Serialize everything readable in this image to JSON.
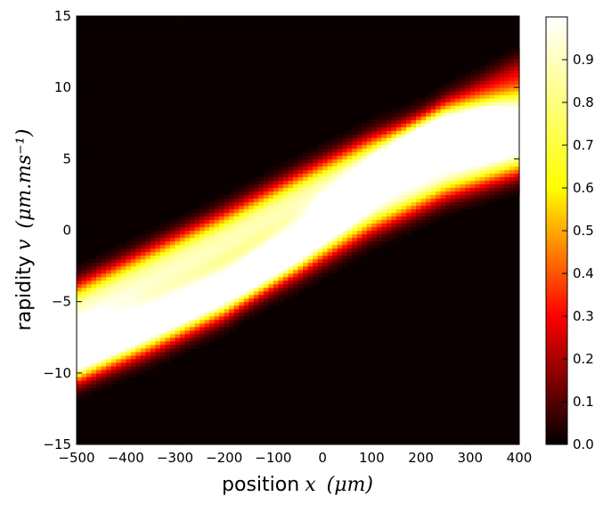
{
  "chart_data": {
    "type": "heatmap",
    "title": "",
    "xlabel": "position",
    "xlabel_var": "x",
    "xlabel_unit": "(μm)",
    "ylabel": "rapidity",
    "ylabel_var": "v",
    "ylabel_unit": "(μm.ms⁻¹)",
    "xlim": [
      -500,
      400
    ],
    "ylim": [
      -15,
      15
    ],
    "x_ticks": [
      -500,
      -400,
      -300,
      -200,
      -100,
      0,
      100,
      200,
      300,
      400
    ],
    "x_tick_labels": [
      "−500",
      "−400",
      "−300",
      "−200",
      "−100",
      "0",
      "100",
      "200",
      "300",
      "400"
    ],
    "y_ticks": [
      -15,
      -10,
      -5,
      0,
      5,
      10,
      15
    ],
    "y_tick_labels": [
      "−15",
      "−10",
      "−5",
      "0",
      "5",
      "10",
      "15"
    ],
    "colormap": "hot",
    "color_range": [
      0.0,
      1.0
    ],
    "colorbar_ticks": [
      0.0,
      0.1,
      0.2,
      0.3,
      0.4,
      0.5,
      0.6,
      0.7,
      0.8,
      0.9
    ],
    "colorbar_tick_labels": [
      "0.0",
      "0.1",
      "0.2",
      "0.3",
      "0.4",
      "0.5",
      "0.6",
      "0.7",
      "0.8",
      "0.9"
    ],
    "grid": false,
    "lobes": [
      {
        "x": [
          -500,
          -350,
          -200,
          -50,
          100,
          250,
          400
        ],
        "v": [
          -5.5,
          -3.0,
          -0.5,
          2.2,
          4.8,
          6.8,
          8.0
        ],
        "width_v": 1.8,
        "peak": 0.9
      },
      {
        "x": [
          -500,
          -350,
          -200,
          -50,
          100,
          250,
          400
        ],
        "v": [
          -8.5,
          -6.2,
          -3.8,
          -1.2,
          1.8,
          4.2,
          5.8
        ],
        "width_v": 1.9,
        "peak": 0.95
      },
      {
        "x": [
          -500,
          -350,
          -200,
          -50,
          100,
          250,
          400
        ],
        "v": [
          -9.2,
          -7.2,
          -4.8,
          -0.8,
          3.5,
          7.8,
          10.5
        ],
        "width_v": 1.6,
        "peak": 0.35
      }
    ]
  }
}
